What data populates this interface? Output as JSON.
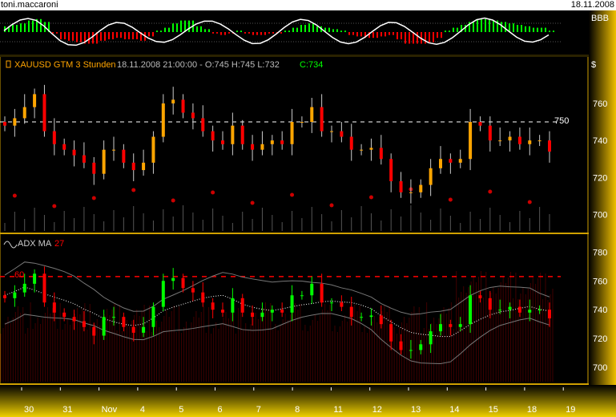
{
  "window": {
    "user": "toni.maccaroni",
    "date": "18.11.2008"
  },
  "oscillator": {
    "label": "BBB",
    "histogram": [
      0.4,
      0.5,
      0.6,
      0.8,
      0.9,
      0.7,
      -0.1,
      -0.5,
      -0.6,
      -0.7,
      -0.8,
      -0.8,
      -0.6,
      -0.5,
      -0.4,
      -0.5,
      -0.5,
      -0.6,
      -0.3,
      0.1,
      0.3,
      0.6,
      0.8,
      0.8,
      0.4,
      0.2,
      -0.1,
      -0.2,
      -0.1,
      0.1,
      -0.1,
      -0.2,
      -0.2,
      -0.1,
      -0.1,
      0.1,
      0.3,
      0.5,
      0.6,
      0.4,
      0.3,
      0.2,
      0.1,
      -0.2,
      -0.3,
      -0.4,
      -0.4,
      -0.3,
      -0.2,
      -0.5,
      -0.8,
      -0.8,
      -0.8,
      -0.7,
      -0.4,
      0.1,
      0.3,
      0.5,
      0.7,
      0.9,
      0.9,
      0.8,
      0.7,
      0.6,
      0.5,
      0.4,
      0.3,
      0.3,
      0.1
    ],
    "colors": {
      "up": "#00ff00",
      "down": "#ff0000",
      "line": "#ffffff"
    }
  },
  "price_panel": {
    "symbol": "XAUUSD GTM 3 Stunden",
    "info": "18.11.2008 21:00:00 - O:745 H:745 L:732",
    "close_label": "C:734",
    "currency": "$",
    "level": 750,
    "level_label": "750",
    "yticks": [
      760,
      740,
      720,
      700
    ],
    "ylim": [
      692,
      776
    ]
  },
  "indicator_panel": {
    "name": "ADX MA",
    "period": "27",
    "level_label": "60",
    "level": 763,
    "yticks": [
      780,
      760,
      740,
      720,
      700
    ],
    "ylim": [
      690,
      788
    ]
  },
  "chart_data": {
    "type": "candlestick",
    "close": [
      748,
      752,
      758,
      765,
      745,
      738,
      735,
      732,
      728,
      722,
      735,
      735,
      728,
      724,
      728,
      742,
      760,
      762,
      755,
      752,
      745,
      740,
      738,
      748,
      738,
      735,
      738,
      740,
      738,
      750,
      750,
      758,
      745,
      745,
      742,
      735,
      735,
      736,
      730,
      718,
      712,
      712,
      716,
      725,
      730,
      728,
      730,
      750,
      748,
      740,
      740,
      742,
      738,
      740,
      740,
      734
    ],
    "xticks": [
      "30",
      "31",
      "Nov",
      "4",
      "5",
      "6",
      "7",
      "8",
      "11",
      "12",
      "13",
      "14",
      "15",
      "18",
      "19"
    ]
  },
  "colors": {
    "up": "#00ff00",
    "down": "#ff0000",
    "orange": "#ffa500",
    "axis": "#f0c000"
  }
}
